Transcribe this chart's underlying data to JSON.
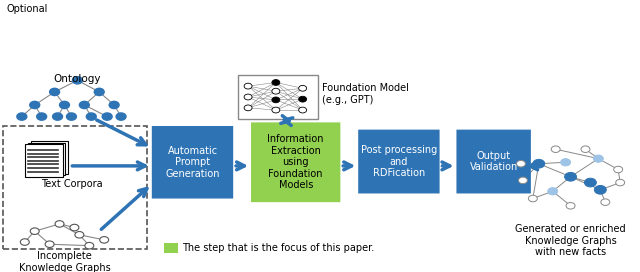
{
  "blue_box_color": "#2E74B5",
  "green_box_color": "#92D050",
  "arrow_color": "#2E74B5",
  "text_color_white": "#FFFFFF",
  "text_color_black": "#000000",
  "text_color_dark": "#1A1A1A",
  "background": "#FFFFFF",
  "box_labels": {
    "auto_prompt": "Automatic\nPrompt\nGeneration",
    "info_extract": "Information\nExtraction\nusing\nFoundation\nModels",
    "post_process": "Post processing\nand\nRDFication",
    "output_valid": "Output\nValidation"
  },
  "side_labels": {
    "ontology": "Ontology",
    "optional": "Optional",
    "text_corpora": "Text Corpora",
    "incomplete_kg": "Incomplete\nKnowledge Graphs",
    "foundation_model": "Foundation Model\n(e.g., GPT)",
    "generated_kg": "Generated or enriched\nKnowledge Graphs\nwith new facts",
    "legend": "The step that is the focus of this paper."
  },
  "node_blue": "#2E74B5",
  "node_light_blue": "#9DC3E6",
  "node_gray": "#D0D0D0"
}
